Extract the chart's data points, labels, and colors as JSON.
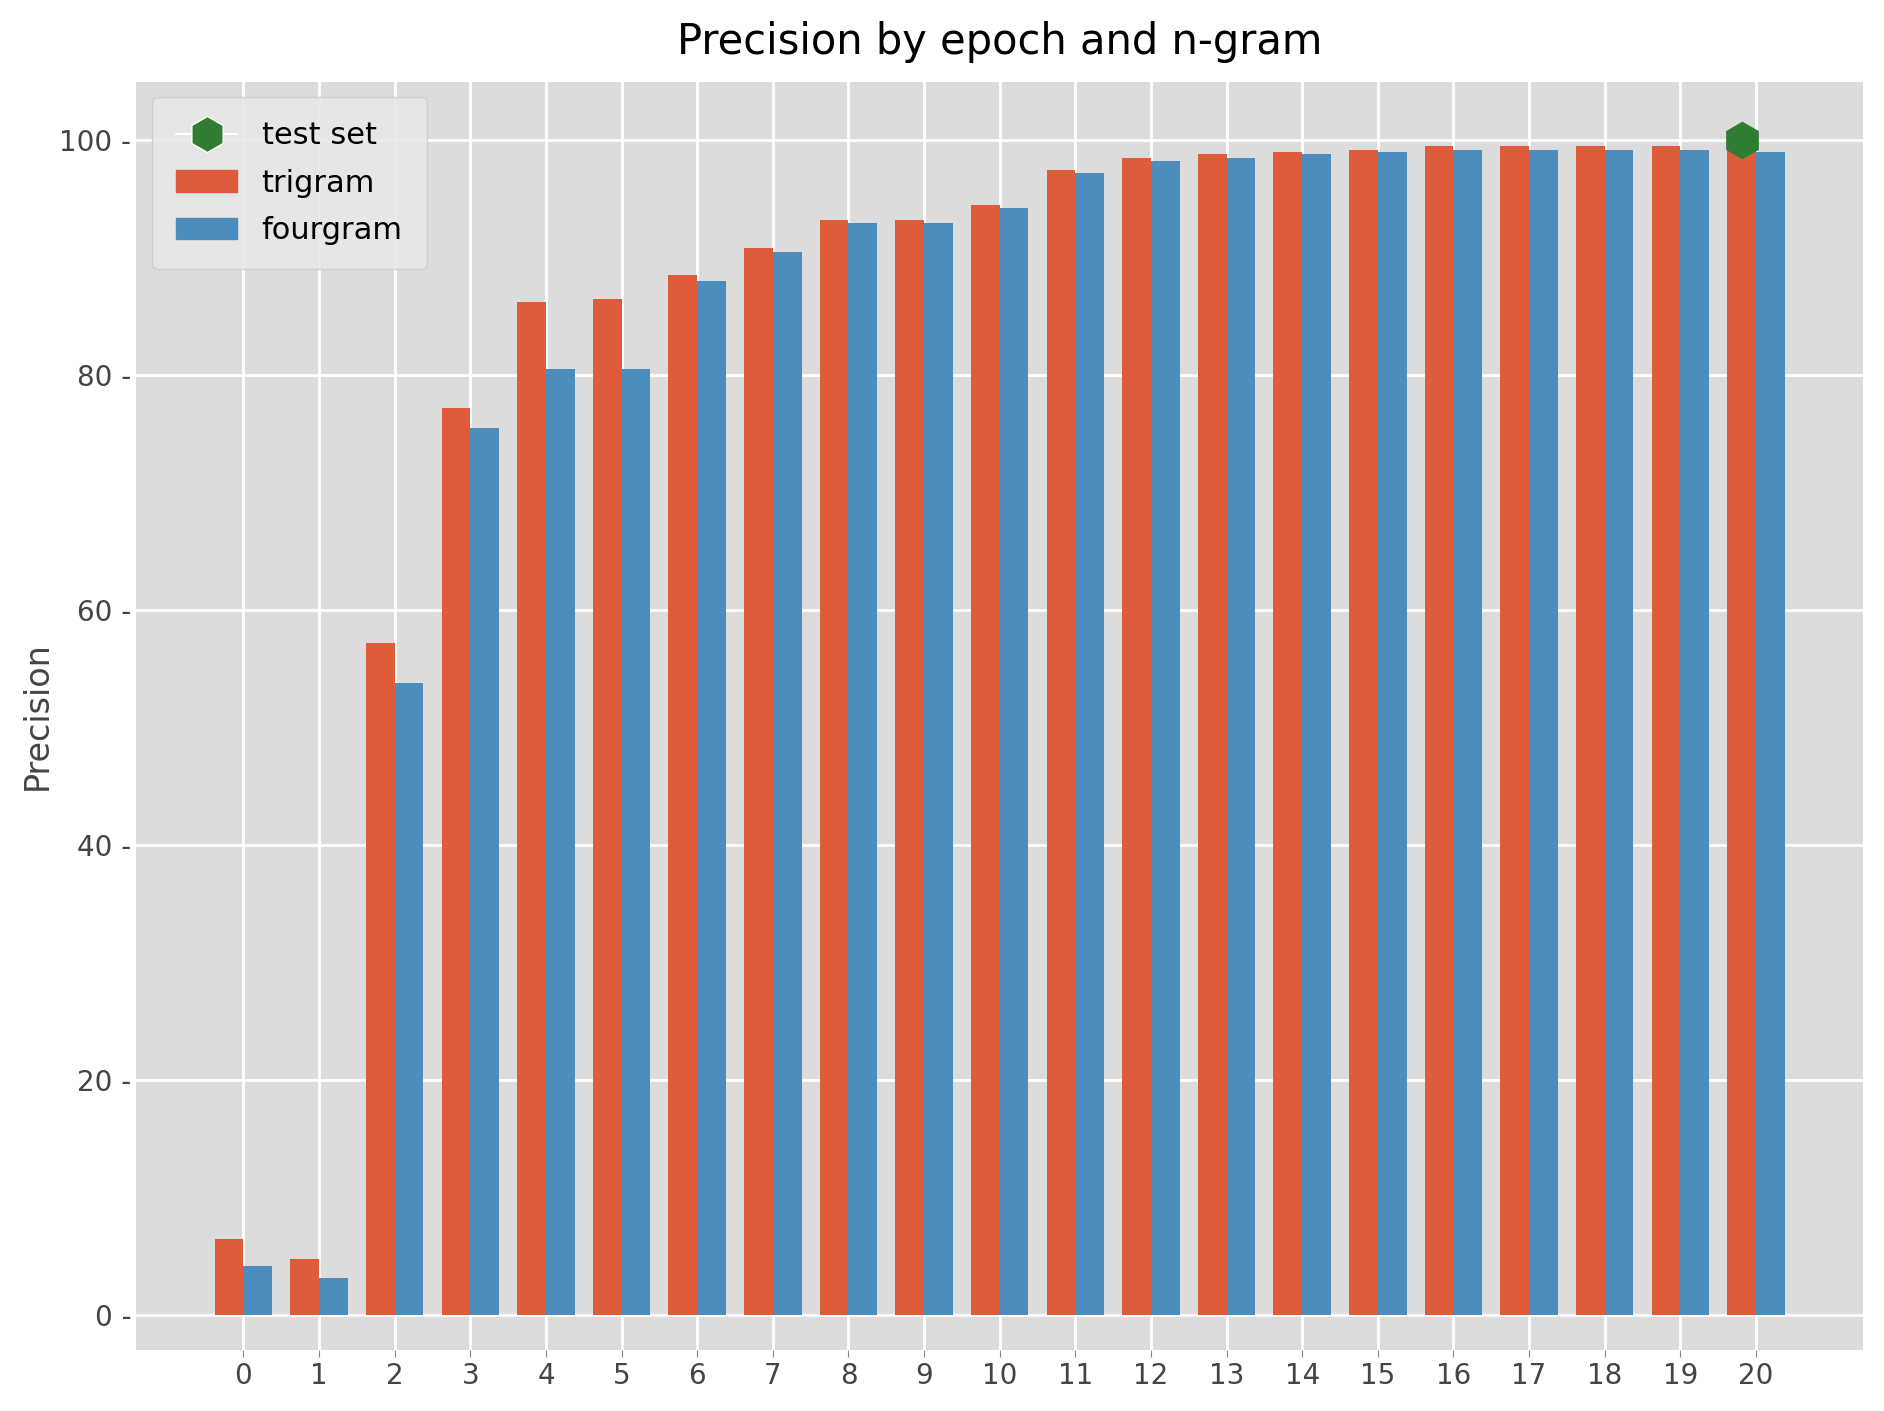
{
  "title": "Precision by epoch and n-gram",
  "ylabel": "Precision",
  "epochs": [
    0,
    1,
    2,
    3,
    4,
    5,
    6,
    7,
    8,
    9,
    10,
    11,
    12,
    13,
    14,
    15,
    16,
    17,
    18,
    19,
    20
  ],
  "trigram": [
    6.5,
    4.8,
    57.2,
    77.2,
    86.2,
    86.5,
    88.5,
    90.8,
    93.2,
    93.2,
    94.5,
    97.5,
    98.5,
    98.8,
    99.0,
    99.2,
    99.5,
    99.5,
    99.5,
    99.5,
    99.2
  ],
  "fourgram": [
    4.2,
    3.2,
    53.8,
    75.5,
    80.5,
    80.5,
    88.0,
    90.5,
    93.0,
    93.0,
    94.2,
    97.2,
    98.2,
    98.5,
    98.8,
    99.0,
    99.2,
    99.2,
    99.2,
    99.2,
    99.0
  ],
  "test_set_epoch": 20,
  "test_set_value": 100,
  "trigram_color": "#E05B3A",
  "fourgram_color": "#4C8DBE",
  "test_set_color": "#2E7D32",
  "axes_background_color": "#DCDCDC",
  "figure_background_color": "#FFFFFF",
  "grid_color": "#FFFFFF",
  "bar_width": 0.38,
  "figsize": [
    18.84,
    14.11
  ],
  "dpi": 100,
  "title_fontsize": 30,
  "axis_label_fontsize": 24,
  "tick_fontsize": 20,
  "legend_fontsize": 22,
  "ylim": [
    -3,
    105
  ]
}
